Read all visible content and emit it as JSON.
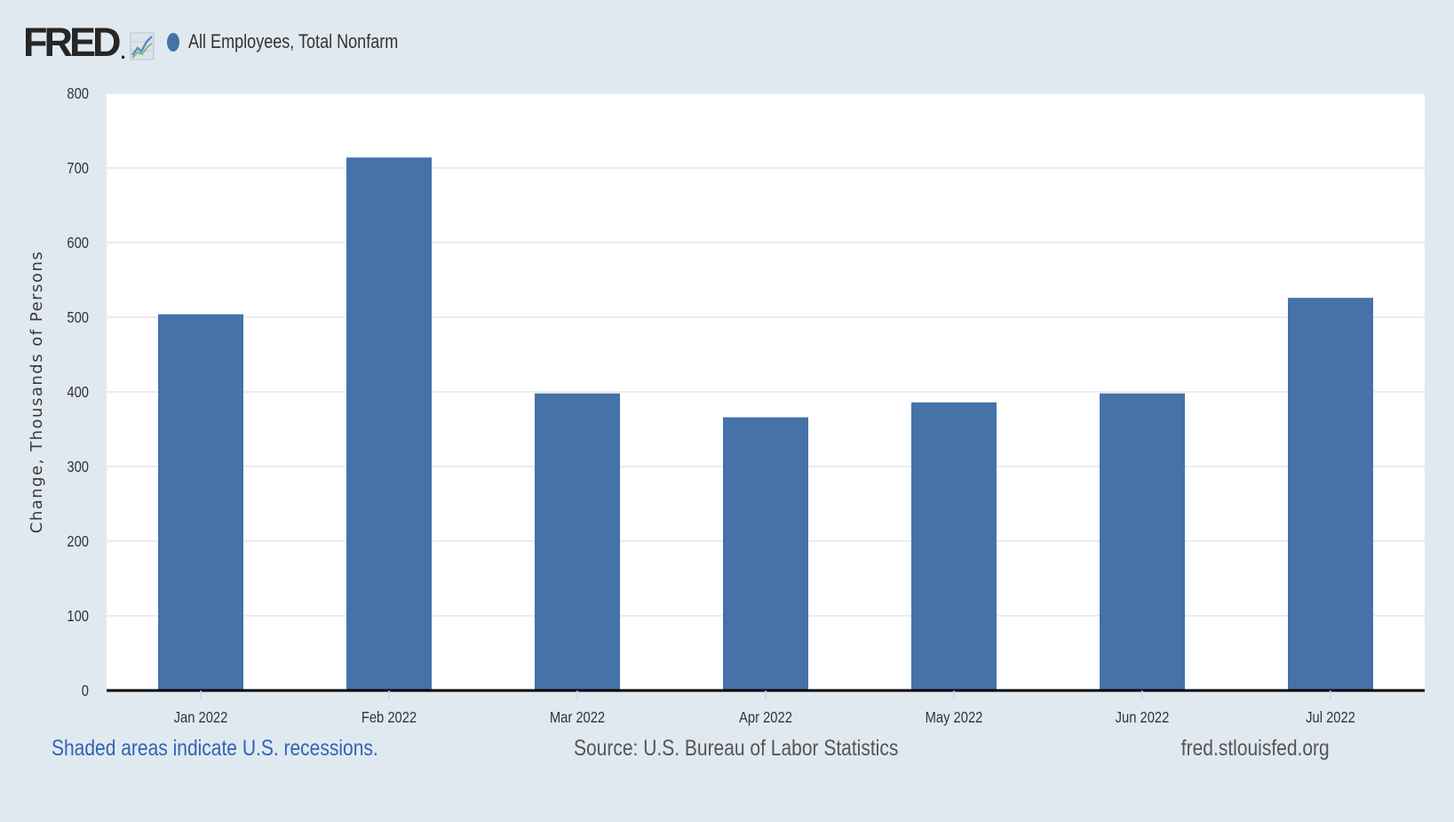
{
  "header": {
    "logo_text": "FRED",
    "logo_mark": "."
  },
  "legend": {
    "series_label": "All Employees, Total Nonfarm",
    "icon": "dot-icon"
  },
  "colors": {
    "background": "#e1e9f0",
    "plot_background": "#ffffff",
    "bar": "#4572a7",
    "gridline": "#e6e6e6",
    "baseline": "#000000",
    "footer_link": "#3164b4"
  },
  "chart_data": {
    "type": "bar",
    "categories": [
      "Jan 2022",
      "Feb 2022",
      "Mar 2022",
      "Apr 2022",
      "May 2022",
      "Jun 2022",
      "Jul 2022"
    ],
    "series": [
      {
        "name": "All Employees, Total Nonfarm",
        "values": [
          504,
          714,
          398,
          366,
          386,
          398,
          526
        ]
      }
    ],
    "ylabel": "Change, Thousands of Persons",
    "xlabel": "",
    "ylim": [
      0,
      800
    ],
    "yticks": [
      0,
      100,
      200,
      300,
      400,
      500,
      600,
      700,
      800
    ],
    "grid": true,
    "legend_position": "top-left"
  },
  "footer": {
    "note": "Shaded areas indicate U.S. recessions.",
    "source": "Source: U.S. Bureau of Labor Statistics",
    "site": "fred.stlouisfed.org"
  }
}
